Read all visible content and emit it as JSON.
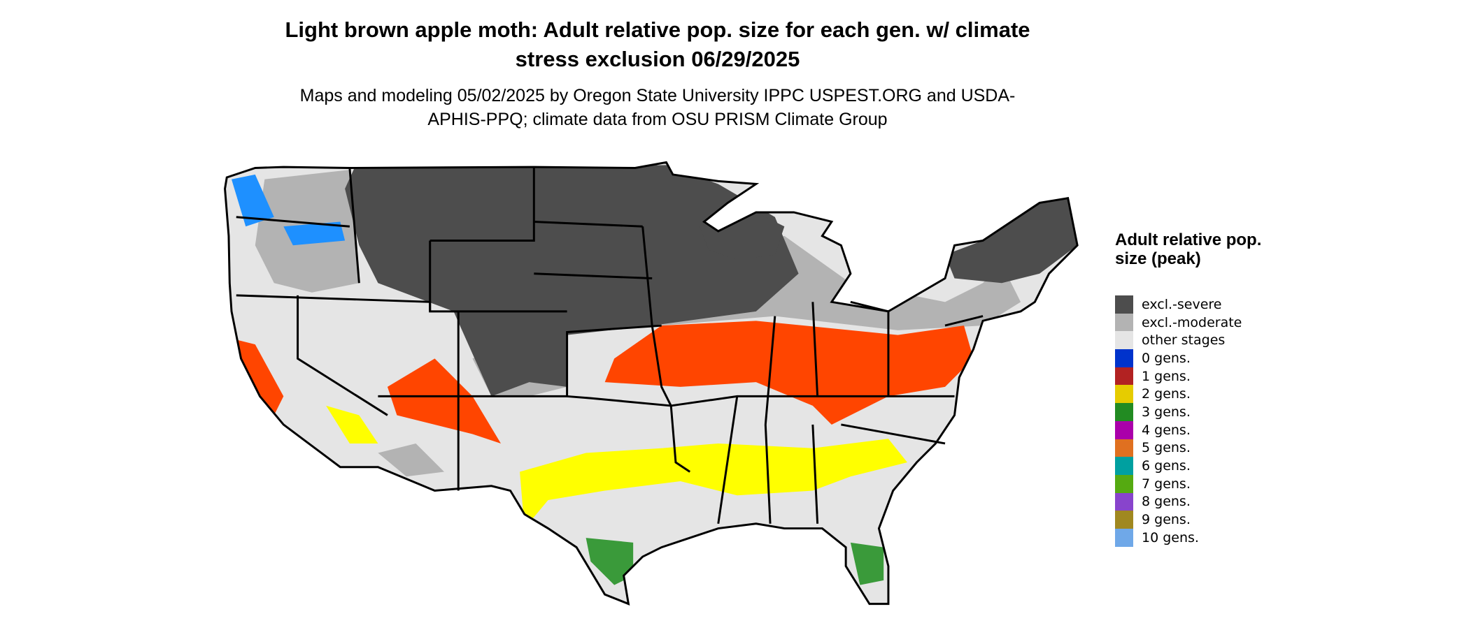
{
  "title": "Light brown apple moth: Adult relative pop. size for each gen. w/ climate stress exclusion 06/29/2025",
  "subtitle": "Maps and modeling 05/02/2025 by Oregon State University IPPC USPEST.ORG and USDA-APHIS-PPQ; climate data from OSU PRISM Climate Group",
  "legend": {
    "title": "Adult relative pop. size (peak)",
    "items": [
      {
        "label": "excl.-severe",
        "color": "#4d4d4d"
      },
      {
        "label": "excl.-moderate",
        "color": "#b3b3b3"
      },
      {
        "label": "other stages",
        "color": "#e5e5e5"
      },
      {
        "label": "0 gens.",
        "color": "#0033cc"
      },
      {
        "label": "1 gens.",
        "color": "#b22222"
      },
      {
        "label": "2 gens.",
        "color": "#e6cc00"
      },
      {
        "label": "3 gens.",
        "color": "#228b22"
      },
      {
        "label": "4 gens.",
        "color": "#aa00aa"
      },
      {
        "label": "5 gens.",
        "color": "#e07020"
      },
      {
        "label": "6 gens.",
        "color": "#00a0a0"
      },
      {
        "label": "7 gens.",
        "color": "#55aa11"
      },
      {
        "label": "8 gens.",
        "color": "#8844cc"
      },
      {
        "label": "9 gens.",
        "color": "#a08820"
      },
      {
        "label": "10 gens.",
        "color": "#6fa8e8"
      }
    ]
  }
}
